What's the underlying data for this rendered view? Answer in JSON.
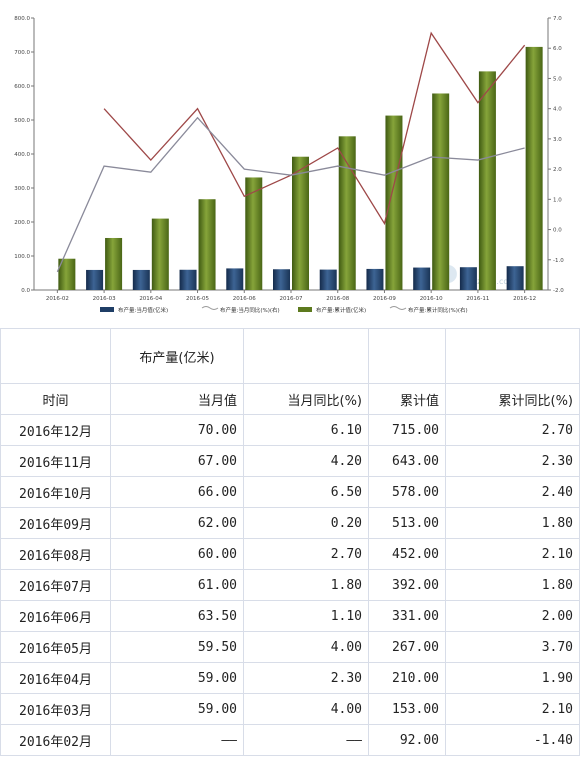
{
  "chart_data": {
    "type": "bar",
    "categories": [
      "2016-02",
      "2016-03",
      "2016-04",
      "2016-05",
      "2016-06",
      "2016-07",
      "2016-08",
      "2016-09",
      "2016-10",
      "2016-11",
      "2016-12"
    ],
    "series": [
      {
        "name": "布产量:当月值(亿米)",
        "type": "bar",
        "axis": "left",
        "color": "#1f3e66",
        "values": [
          null,
          59,
          59,
          59.5,
          63.5,
          61,
          60,
          62,
          66,
          67,
          70
        ]
      },
      {
        "name": "布产量:当月同比(%)(右)",
        "type": "line",
        "axis": "right",
        "color": "#9e4848",
        "values": [
          null,
          4.0,
          2.3,
          4.0,
          1.1,
          1.8,
          2.7,
          0.2,
          6.5,
          4.2,
          6.1
        ]
      },
      {
        "name": "布产量:累计值(亿米)",
        "type": "bar",
        "axis": "left",
        "color": "#5d7a1e",
        "values": [
          92,
          153,
          210,
          267,
          331,
          392,
          452,
          513,
          578,
          643,
          715
        ]
      },
      {
        "name": "布产量:累计同比(%)(右)",
        "type": "line",
        "axis": "right",
        "color": "#8a8a9a",
        "values": [
          -1.4,
          2.1,
          1.9,
          3.7,
          2.0,
          1.8,
          2.1,
          1.8,
          2.4,
          2.3,
          2.7
        ]
      }
    ],
    "y_left": {
      "min": 0,
      "max": 800,
      "ticks": [
        "0.0",
        "100.0",
        "200.0",
        "300.0",
        "400.0",
        "500.0",
        "600.0",
        "700.0",
        "800.0"
      ]
    },
    "y_right": {
      "min": -2,
      "max": 7,
      "ticks": [
        "-2.0",
        "-1.0",
        "0.0",
        "1.0",
        "2.0",
        "3.0",
        "4.0",
        "5.0",
        "6.0",
        "7.0"
      ]
    },
    "legend_position": "bottom",
    "grid": false,
    "watermark": "qianzhan.com"
  },
  "table": {
    "group_header": "布产量(亿米)",
    "columns": [
      "时间",
      "当月值",
      "当月同比(%)",
      "累计值",
      "累计同比(%)"
    ],
    "rows": [
      [
        "2016年12月",
        "70.00",
        "6.10",
        "715.00",
        "2.70"
      ],
      [
        "2016年11月",
        "67.00",
        "4.20",
        "643.00",
        "2.30"
      ],
      [
        "2016年10月",
        "66.00",
        "6.50",
        "578.00",
        "2.40"
      ],
      [
        "2016年09月",
        "62.00",
        "0.20",
        "513.00",
        "1.80"
      ],
      [
        "2016年08月",
        "60.00",
        "2.70",
        "452.00",
        "2.10"
      ],
      [
        "2016年07月",
        "61.00",
        "1.80",
        "392.00",
        "1.80"
      ],
      [
        "2016年06月",
        "63.50",
        "1.10",
        "331.00",
        "2.00"
      ],
      [
        "2016年05月",
        "59.50",
        "4.00",
        "267.00",
        "3.70"
      ],
      [
        "2016年04月",
        "59.00",
        "2.30",
        "210.00",
        "1.90"
      ],
      [
        "2016年03月",
        "59.00",
        "4.00",
        "153.00",
        "2.10"
      ],
      [
        "2016年02月",
        "——",
        "——",
        "92.00",
        "-1.40"
      ]
    ]
  }
}
